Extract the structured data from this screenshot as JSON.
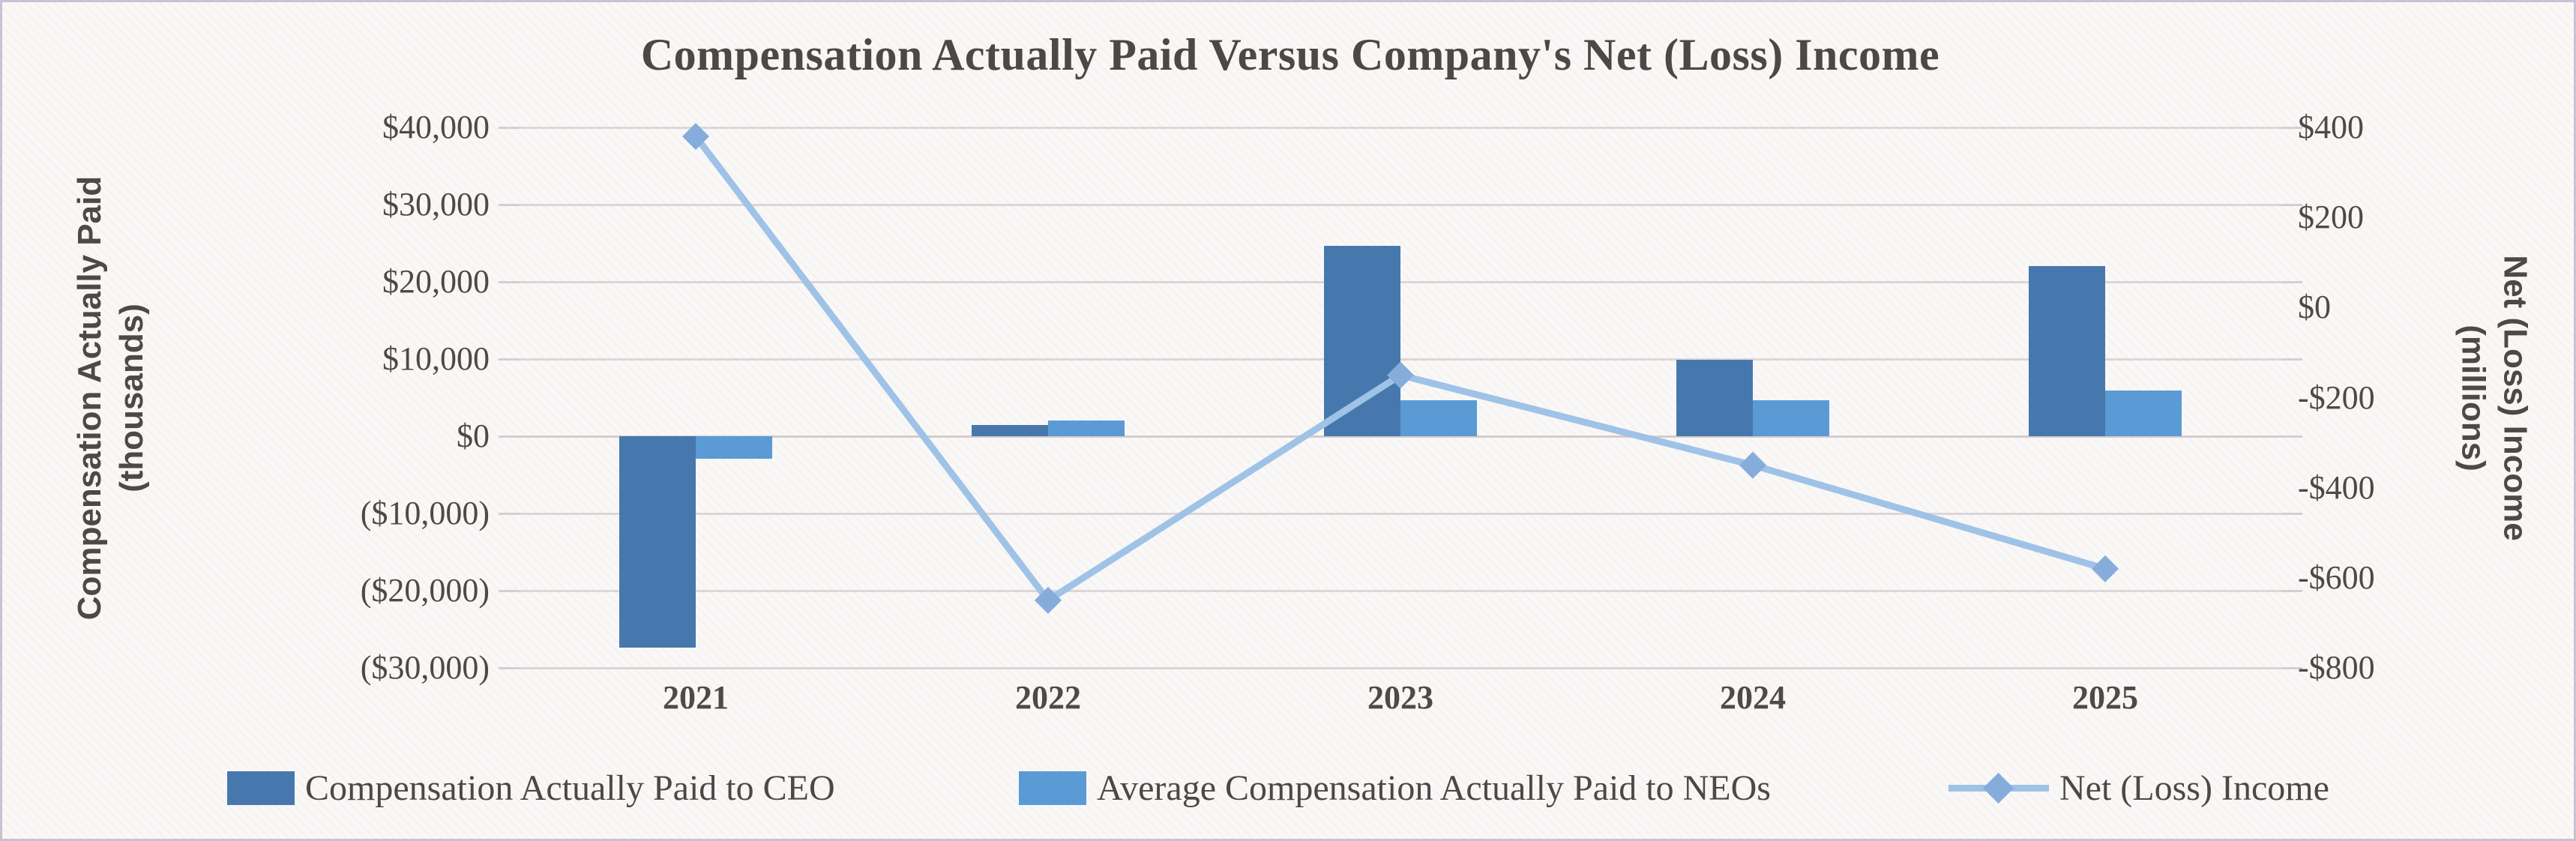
{
  "title": "Compensation Actually Paid Versus Company's Net (Loss) Income",
  "left_axis": {
    "title_line1": "Compensation Actually Paid",
    "title_line2": "(thousands)",
    "tick_labels": [
      "$40,000",
      "$30,000",
      "$20,000",
      "$10,000",
      "$0",
      "($10,000)",
      "($20,000)",
      "($30,000)"
    ],
    "max": 40000,
    "min": -30000,
    "step": 10000
  },
  "right_axis": {
    "title_line1": "Net (Loss) Income",
    "title_line2": "(millions)",
    "tick_labels": [
      "$400",
      "$200",
      "$0",
      "-$200",
      "-$400",
      "-$600",
      "-$800"
    ],
    "max": 400,
    "min": -800,
    "step": 200
  },
  "colors": {
    "ceo_bar": "#4678ad",
    "neo_bar": "#5b9bd5",
    "net_line": "#9fc2e7",
    "net_marker": "#85acdb",
    "gridline": "#ddd6d8",
    "text": "#4c4a48"
  },
  "chart_data": {
    "type": "combo-bar-line",
    "title": "Compensation Actually Paid Versus Company's Net (Loss) Income",
    "categories": [
      "2021",
      "2022",
      "2023",
      "2024",
      "2025"
    ],
    "series": [
      {
        "name": "Compensation Actually Paid to CEO",
        "type": "bar",
        "axis": "left",
        "units": "thousands USD",
        "values": [
          -27400,
          1500,
          24700,
          9900,
          22000
        ]
      },
      {
        "name": "Average Compensation Actually Paid to NEOs",
        "type": "bar",
        "axis": "left",
        "units": "thousands USD",
        "values": [
          -2900,
          2000,
          4700,
          4700,
          5900
        ]
      },
      {
        "name": "Net (Loss) Income",
        "type": "line",
        "axis": "right",
        "units": "millions USD",
        "values": [
          380,
          -650,
          -150,
          -350,
          -580
        ]
      }
    ],
    "left_axis_range": [
      -30000,
      40000
    ],
    "right_axis_range": [
      -800,
      400
    ],
    "grid": "horizontal",
    "legend_position": "bottom"
  },
  "legend": [
    {
      "label": "Compensation Actually Paid to CEO",
      "marker": "square",
      "color": "#4678ad"
    },
    {
      "label": "Average Compensation Actually Paid to NEOs",
      "marker": "square",
      "color": "#5b9bd5"
    },
    {
      "label": "Net (Loss) Income",
      "marker": "line-diamond",
      "color": "#9fc2e7"
    }
  ]
}
